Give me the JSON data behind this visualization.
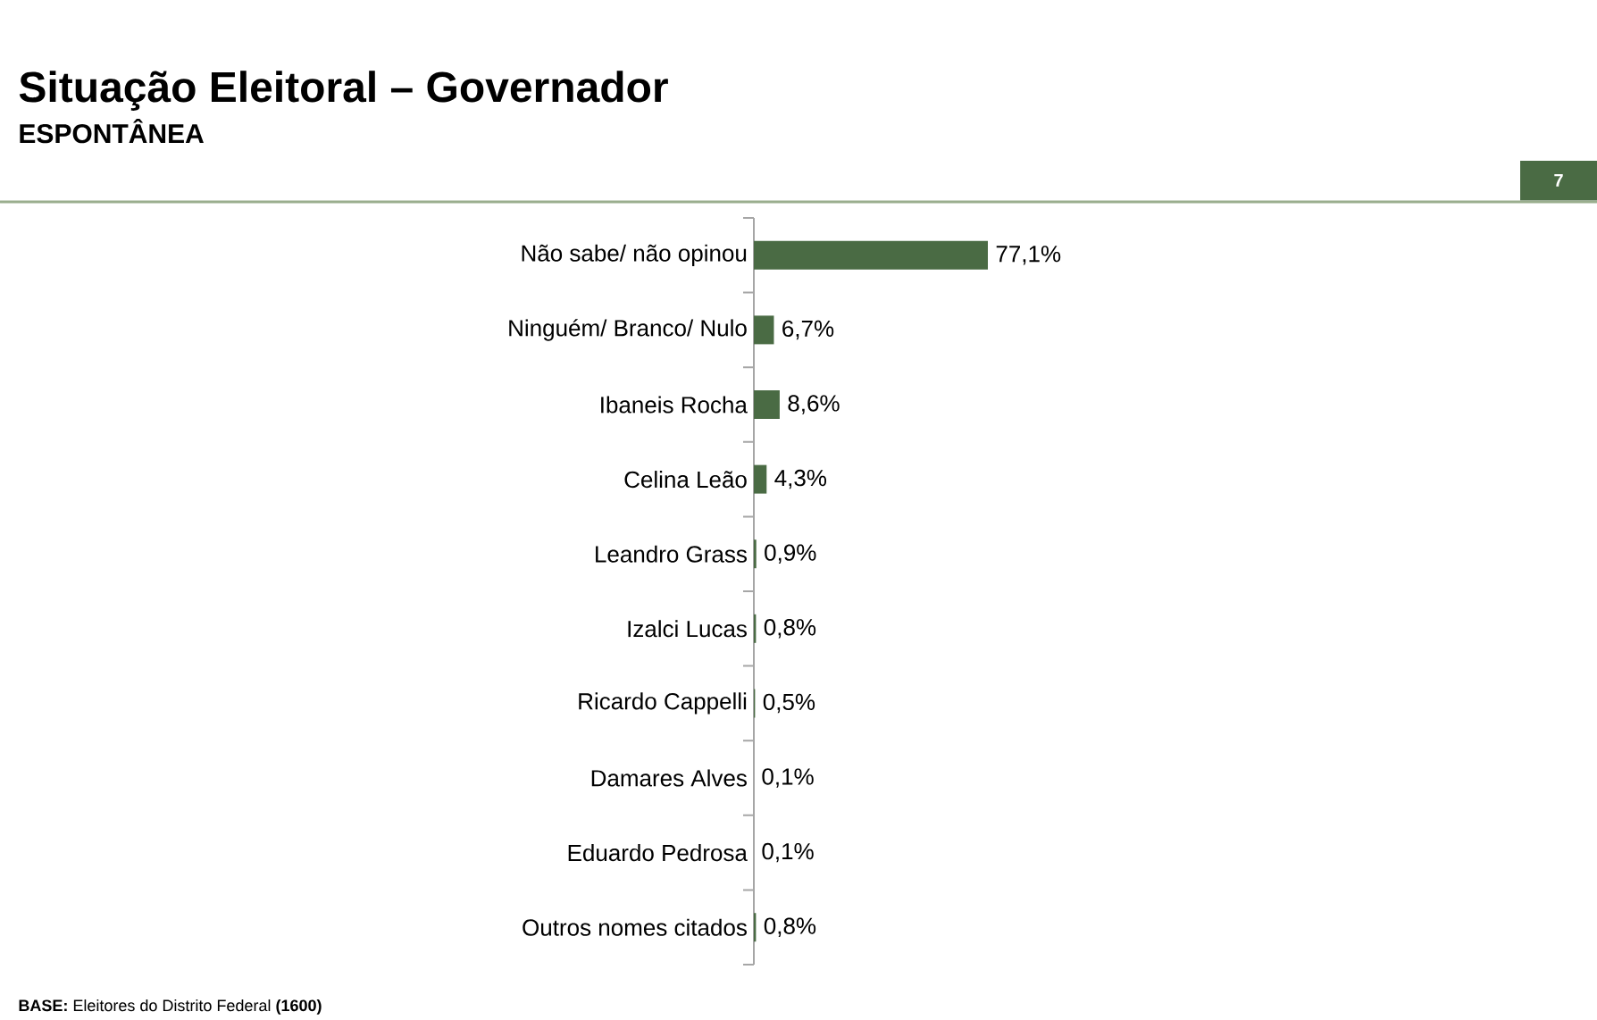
{
  "chart_data": {
    "type": "bar",
    "orientation": "horizontal",
    "title": "Situação Eleitoral – Governador",
    "subtitle": "ESPONTÂNEA",
    "categories": [
      "Não sabe/ não opinou",
      "Ninguém/ Branco/ Nulo",
      "Ibaneis Rocha",
      "Celina Leão",
      "Leandro Grass",
      "Izalci Lucas",
      "Ricardo Cappelli",
      "Damares Alves",
      "Eduardo Pedrosa",
      "Outros nomes citados"
    ],
    "values": [
      77.1,
      6.7,
      8.6,
      4.3,
      0.9,
      0.8,
      0.5,
      0.1,
      0.1,
      0.8
    ],
    "value_labels": [
      "77,1%",
      "6,7%",
      "8,6%",
      "4,3%",
      "0,9%",
      "0,8%",
      "0,5%",
      "0,1%",
      "0,1%",
      "0,8%"
    ],
    "color": "#4a6b44",
    "tick_labels": "y",
    "annotations": [
      "**BASE:** Eleitores do Distrito Federal **(1600)**",
      "7"
    ]
  }
}
